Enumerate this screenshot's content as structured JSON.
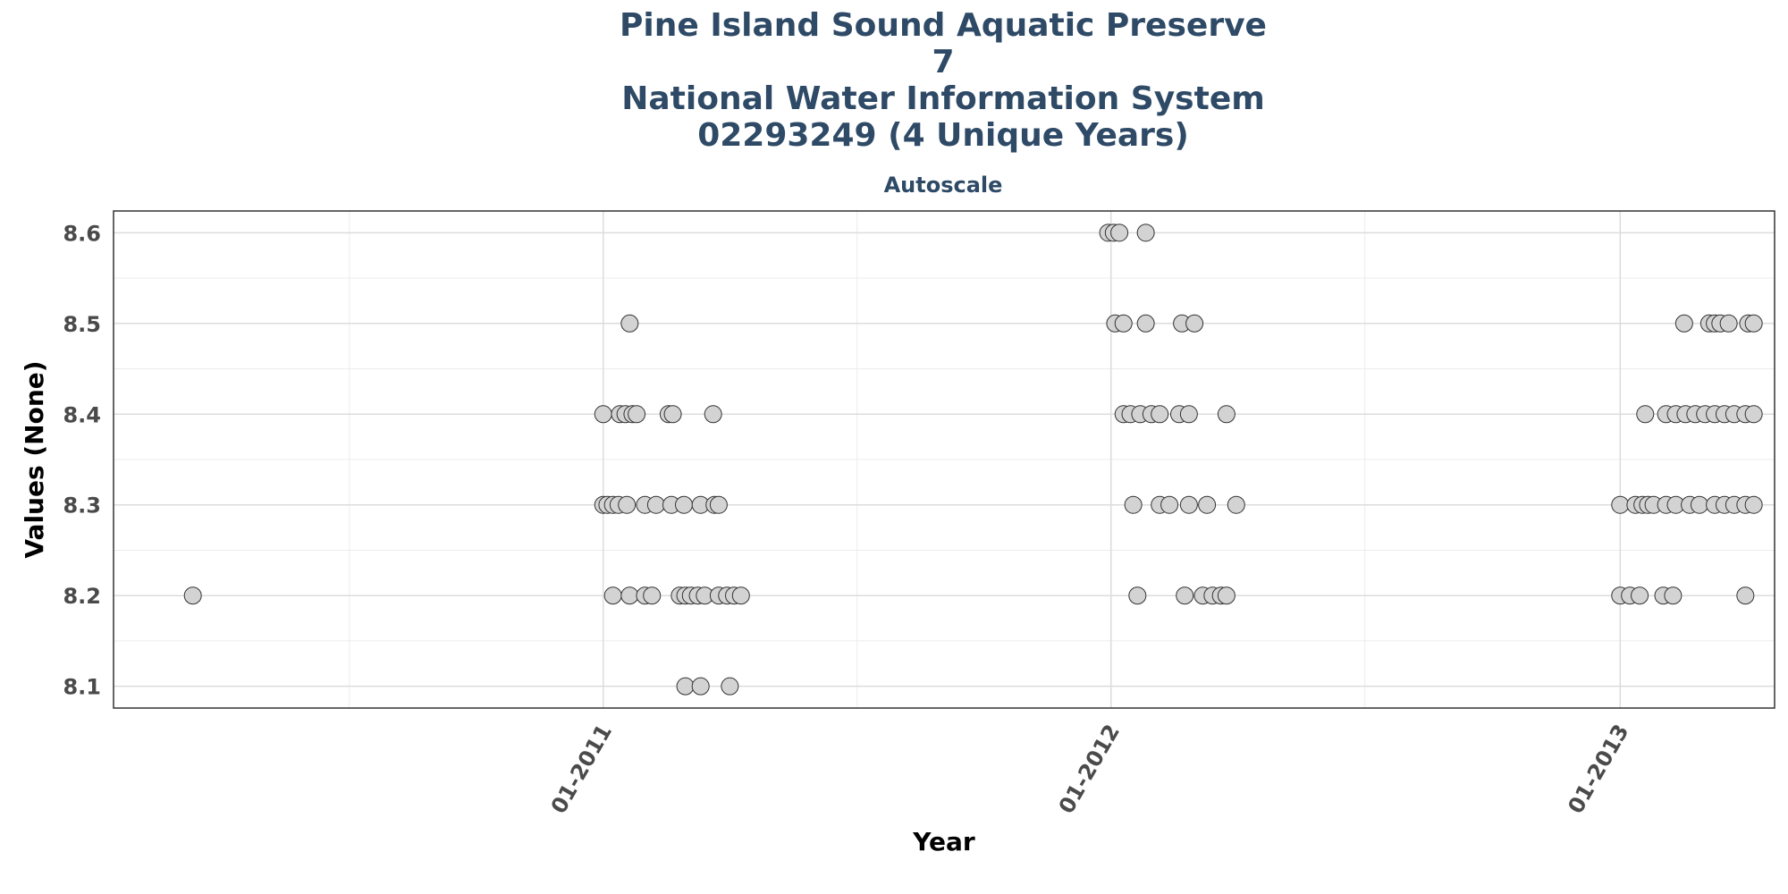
{
  "chart_data": {
    "type": "scatter",
    "title_lines": [
      "Pine Island Sound Aquatic Preserve",
      "7",
      "National Water Information System",
      "02293249 (4 Unique Years)"
    ],
    "subtitle": "Autoscale",
    "xlabel": "Year",
    "ylabel": "Values (None)",
    "x_ticks": [
      "01-2011",
      "01-2012",
      "01-2013"
    ],
    "y_ticks": [
      "8.1",
      "8.2",
      "8.3",
      "8.4",
      "8.5",
      "8.6"
    ],
    "xlim": [
      "2010-01-14",
      "2013-04-22"
    ],
    "ylim": [
      8.076,
      8.624
    ],
    "grid": true,
    "legend": "none",
    "colors": {
      "point_fill": "#d3d3d3",
      "point_stroke": "#333333",
      "title": "#2e4a66"
    },
    "points": [
      {
        "x": "2010-03-12",
        "y": 8.2
      },
      {
        "x": "2011-01-01",
        "y": 8.4
      },
      {
        "x": "2011-01-13",
        "y": 8.4
      },
      {
        "x": "2011-01-17",
        "y": 8.4
      },
      {
        "x": "2011-01-22",
        "y": 8.4
      },
      {
        "x": "2011-01-25",
        "y": 8.4
      },
      {
        "x": "2011-02-17",
        "y": 8.4
      },
      {
        "x": "2011-02-20",
        "y": 8.4
      },
      {
        "x": "2011-03-21",
        "y": 8.4
      },
      {
        "x": "2011-01-20",
        "y": 8.5
      },
      {
        "x": "2011-01-01",
        "y": 8.3
      },
      {
        "x": "2011-01-04",
        "y": 8.3
      },
      {
        "x": "2011-01-08",
        "y": 8.3
      },
      {
        "x": "2011-01-12",
        "y": 8.3
      },
      {
        "x": "2011-01-18",
        "y": 8.3
      },
      {
        "x": "2011-01-31",
        "y": 8.3
      },
      {
        "x": "2011-02-08",
        "y": 8.3
      },
      {
        "x": "2011-02-19",
        "y": 8.3
      },
      {
        "x": "2011-02-28",
        "y": 8.3
      },
      {
        "x": "2011-03-12",
        "y": 8.3
      },
      {
        "x": "2011-03-22",
        "y": 8.3
      },
      {
        "x": "2011-03-25",
        "y": 8.3
      },
      {
        "x": "2011-01-08",
        "y": 8.2
      },
      {
        "x": "2011-01-20",
        "y": 8.2
      },
      {
        "x": "2011-01-31",
        "y": 8.2
      },
      {
        "x": "2011-02-05",
        "y": 8.2
      },
      {
        "x": "2011-02-25",
        "y": 8.2
      },
      {
        "x": "2011-03-01",
        "y": 8.2
      },
      {
        "x": "2011-03-05",
        "y": 8.2
      },
      {
        "x": "2011-03-10",
        "y": 8.2
      },
      {
        "x": "2011-03-15",
        "y": 8.2
      },
      {
        "x": "2011-03-25",
        "y": 8.2
      },
      {
        "x": "2011-03-31",
        "y": 8.2
      },
      {
        "x": "2011-04-05",
        "y": 8.2
      },
      {
        "x": "2011-04-10",
        "y": 8.2
      },
      {
        "x": "2011-03-01",
        "y": 8.1
      },
      {
        "x": "2011-03-12",
        "y": 8.1
      },
      {
        "x": "2011-04-02",
        "y": 8.1
      },
      {
        "x": "2011-12-30",
        "y": 8.6
      },
      {
        "x": "2012-01-03",
        "y": 8.6
      },
      {
        "x": "2012-01-07",
        "y": 8.6
      },
      {
        "x": "2012-01-26",
        "y": 8.6
      },
      {
        "x": "2012-01-04",
        "y": 8.5
      },
      {
        "x": "2012-01-10",
        "y": 8.5
      },
      {
        "x": "2012-01-26",
        "y": 8.5
      },
      {
        "x": "2012-02-21",
        "y": 8.5
      },
      {
        "x": "2012-03-01",
        "y": 8.5
      },
      {
        "x": "2012-01-10",
        "y": 8.4
      },
      {
        "x": "2012-01-15",
        "y": 8.4
      },
      {
        "x": "2012-01-22",
        "y": 8.4
      },
      {
        "x": "2012-01-30",
        "y": 8.4
      },
      {
        "x": "2012-02-05",
        "y": 8.4
      },
      {
        "x": "2012-02-19",
        "y": 8.4
      },
      {
        "x": "2012-02-26",
        "y": 8.4
      },
      {
        "x": "2012-03-24",
        "y": 8.4
      },
      {
        "x": "2012-01-17",
        "y": 8.3
      },
      {
        "x": "2012-02-05",
        "y": 8.3
      },
      {
        "x": "2012-02-12",
        "y": 8.3
      },
      {
        "x": "2012-02-26",
        "y": 8.3
      },
      {
        "x": "2012-03-10",
        "y": 8.3
      },
      {
        "x": "2012-03-31",
        "y": 8.3
      },
      {
        "x": "2012-01-20",
        "y": 8.2
      },
      {
        "x": "2012-02-23",
        "y": 8.2
      },
      {
        "x": "2012-03-07",
        "y": 8.2
      },
      {
        "x": "2012-03-14",
        "y": 8.2
      },
      {
        "x": "2012-03-20",
        "y": 8.2
      },
      {
        "x": "2012-03-24",
        "y": 8.2
      },
      {
        "x": "2013-02-16",
        "y": 8.5
      },
      {
        "x": "2013-03-06",
        "y": 8.5
      },
      {
        "x": "2013-03-10",
        "y": 8.5
      },
      {
        "x": "2013-03-14",
        "y": 8.5
      },
      {
        "x": "2013-03-20",
        "y": 8.5
      },
      {
        "x": "2013-04-03",
        "y": 8.5
      },
      {
        "x": "2013-04-07",
        "y": 8.5
      },
      {
        "x": "2013-01-19",
        "y": 8.4
      },
      {
        "x": "2013-02-03",
        "y": 8.4
      },
      {
        "x": "2013-02-10",
        "y": 8.4
      },
      {
        "x": "2013-02-17",
        "y": 8.4
      },
      {
        "x": "2013-02-24",
        "y": 8.4
      },
      {
        "x": "2013-03-03",
        "y": 8.4
      },
      {
        "x": "2013-03-10",
        "y": 8.4
      },
      {
        "x": "2013-03-17",
        "y": 8.4
      },
      {
        "x": "2013-03-24",
        "y": 8.4
      },
      {
        "x": "2013-04-01",
        "y": 8.4
      },
      {
        "x": "2013-04-07",
        "y": 8.4
      },
      {
        "x": "2013-01-01",
        "y": 8.3
      },
      {
        "x": "2013-01-12",
        "y": 8.3
      },
      {
        "x": "2013-01-17",
        "y": 8.3
      },
      {
        "x": "2013-01-21",
        "y": 8.3
      },
      {
        "x": "2013-01-25",
        "y": 8.3
      },
      {
        "x": "2013-02-03",
        "y": 8.3
      },
      {
        "x": "2013-02-10",
        "y": 8.3
      },
      {
        "x": "2013-02-20",
        "y": 8.3
      },
      {
        "x": "2013-02-27",
        "y": 8.3
      },
      {
        "x": "2013-03-10",
        "y": 8.3
      },
      {
        "x": "2013-03-17",
        "y": 8.3
      },
      {
        "x": "2013-03-24",
        "y": 8.3
      },
      {
        "x": "2013-04-01",
        "y": 8.3
      },
      {
        "x": "2013-04-07",
        "y": 8.3
      },
      {
        "x": "2013-01-01",
        "y": 8.2
      },
      {
        "x": "2013-01-08",
        "y": 8.2
      },
      {
        "x": "2013-01-15",
        "y": 8.2
      },
      {
        "x": "2013-02-01",
        "y": 8.2
      },
      {
        "x": "2013-02-08",
        "y": 8.2
      },
      {
        "x": "2013-04-01",
        "y": 8.2
      }
    ]
  }
}
